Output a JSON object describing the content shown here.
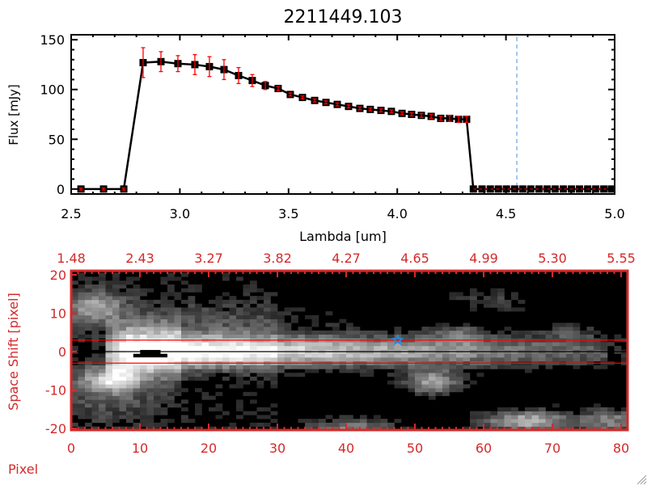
{
  "chart_data": [
    {
      "type": "line",
      "title": "2211449.103",
      "xlabel": "Lambda [um]",
      "ylabel": "Flux [mJy]",
      "xlim": [
        2.5,
        5.0
      ],
      "ylim": [
        -5,
        155
      ],
      "x_ticks": [
        "2.5",
        "3.0",
        "3.5",
        "4.0",
        "4.5",
        "5.0"
      ],
      "y_ticks": [
        "0",
        "50",
        "100",
        "150"
      ],
      "marker_line_color": "#000000",
      "errorbar_color": "#ff0000",
      "vertical_dashed_line": {
        "x": 4.55,
        "color": "#4a90d9"
      },
      "series": [
        {
          "x": [
            2.545,
            2.649,
            2.742,
            2.831,
            2.913,
            2.991,
            3.069,
            3.136,
            3.203,
            3.27,
            3.333,
            3.393,
            3.452,
            3.508,
            3.564,
            3.62,
            3.672,
            3.724,
            3.776,
            3.828,
            3.876,
            3.925,
            3.973,
            4.022,
            4.066,
            4.111,
            4.156,
            4.2,
            4.241,
            4.282,
            4.319,
            4.35,
            4.39,
            4.428,
            4.465,
            4.502,
            4.54,
            4.577,
            4.614,
            4.652,
            4.689,
            4.726,
            4.764,
            4.801,
            4.838,
            4.876,
            4.913,
            4.95,
            4.985
          ],
          "y": [
            0,
            0,
            0,
            127,
            128,
            126,
            125,
            123,
            120,
            114,
            109,
            104,
            101,
            95,
            92,
            89,
            87,
            85,
            83,
            81,
            80,
            79,
            78,
            76,
            75,
            74,
            73,
            71,
            71,
            70,
            70,
            0,
            0,
            0,
            0,
            0,
            0,
            0,
            0,
            0,
            0,
            0,
            0,
            0,
            0,
            0,
            0,
            0,
            0
          ],
          "err": [
            1,
            1,
            1,
            15,
            10,
            8,
            10,
            10,
            10,
            8,
            6,
            4,
            2,
            1.5,
            1.5,
            1.5,
            1.5,
            1.5,
            1.5,
            1.5,
            1.5,
            1.5,
            1.5,
            1.5,
            1.5,
            2,
            2,
            2,
            3,
            3,
            3,
            0,
            0,
            0,
            0,
            0,
            0,
            0,
            0,
            0,
            0,
            0,
            0,
            0,
            0,
            0,
            0,
            0,
            0
          ]
        }
      ]
    },
    {
      "type": "heatmap",
      "xlabel": "Pixel",
      "ylabel": "Space Shift [pixel]",
      "xlim": [
        0,
        81
      ],
      "ylim": [
        -20,
        20
      ],
      "x_ticks": [
        "0",
        "10",
        "20",
        "30",
        "40",
        "50",
        "60",
        "70",
        "80"
      ],
      "y_ticks": [
        "20",
        "10",
        "0",
        "-10",
        "-20"
      ],
      "top_axis_ticks": [
        "1.48",
        "2.43",
        "3.27",
        "3.82",
        "4.27",
        "4.65",
        "4.99",
        "5.30",
        "5.55"
      ],
      "axis_color": "#d42a2a",
      "colormap": "grayscale",
      "horizontal_lines": [
        {
          "y": 3,
          "color": "#ff0000"
        },
        {
          "y": 0,
          "color": "#000000"
        },
        {
          "y": -3,
          "color": "#ff0000"
        }
      ],
      "star_marker": {
        "x": 47,
        "y": 3,
        "color": "#2a8ae0"
      }
    }
  ]
}
